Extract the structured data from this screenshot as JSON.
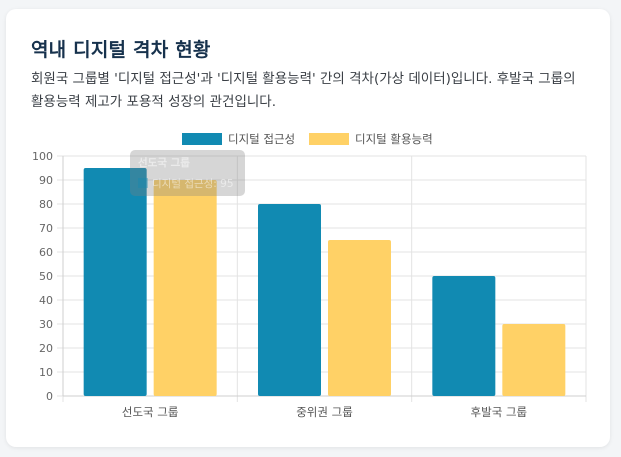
{
  "card": {
    "title": "역내 디지털 격차 현황",
    "description": "회원국 그룹별 '디지털 접근성'과 '디지털 활용능력' 간의 격차(가상 데이터)입니다. 후발국 그룹의 활용능력 제고가 포용적 성장의 관건입니다."
  },
  "chart_data": {
    "type": "bar",
    "categories": [
      "선도국 그룹",
      "중위권 그룹",
      "후발국 그룹"
    ],
    "series": [
      {
        "name": "디지털 접근성",
        "values": [
          95,
          80,
          50
        ],
        "color": "#118ab2"
      },
      {
        "name": "디지털 활용능력",
        "values": [
          90,
          65,
          30
        ],
        "color": "#ffd166"
      }
    ],
    "ylim": [
      0,
      100
    ],
    "yticks": [
      0,
      10,
      20,
      30,
      40,
      50,
      60,
      70,
      80,
      90,
      100
    ],
    "grid": true,
    "legend_position": "top-center",
    "tooltip": {
      "title": "선도국 그룹",
      "line": "디지털 접근성: 95"
    }
  }
}
